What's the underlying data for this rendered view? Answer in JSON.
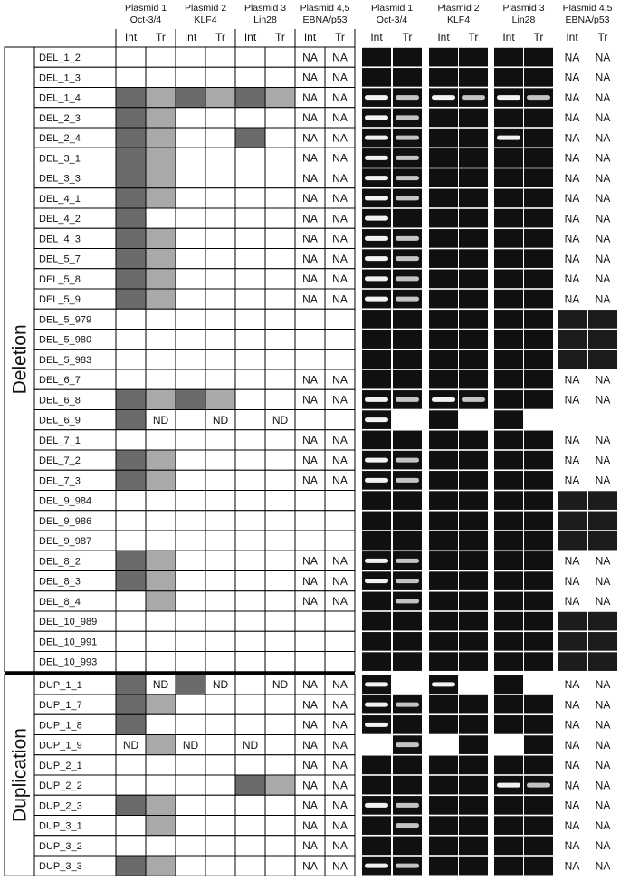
{
  "header": {
    "groups": [
      {
        "line1": "Plasmid 1",
        "line2": "Oct-3/4"
      },
      {
        "line1": "Plasmid 2",
        "line2": "KLF4"
      },
      {
        "line1": "Plasmid 3",
        "line2": "Lin28"
      },
      {
        "line1": "Plasmid 4,5",
        "line2": "EBNA/p53"
      }
    ],
    "sub": [
      "Int",
      "Tr"
    ]
  },
  "sections": [
    {
      "label": "Deletion",
      "rows": [
        {
          "name": "DEL_1_2",
          "shade": [
            null,
            null,
            null,
            null,
            null,
            null,
            null,
            null
          ],
          "text": [
            null,
            null,
            null,
            null,
            null,
            null,
            "NA",
            "NA"
          ]
        },
        {
          "name": "DEL_1_3",
          "shade": [
            null,
            null,
            null,
            null,
            null,
            null,
            null,
            null
          ],
          "text": [
            null,
            null,
            null,
            null,
            null,
            null,
            "NA",
            "NA"
          ]
        },
        {
          "name": "DEL_1_4",
          "shade": [
            "dark",
            "light",
            "dark",
            "light",
            "dark",
            "light",
            null,
            null
          ],
          "text": [
            null,
            null,
            null,
            null,
            null,
            null,
            "NA",
            "NA"
          ]
        },
        {
          "name": "DEL_2_3",
          "shade": [
            "dark",
            "light",
            null,
            null,
            null,
            null,
            null,
            null
          ],
          "text": [
            null,
            null,
            null,
            null,
            null,
            null,
            "NA",
            "NA"
          ]
        },
        {
          "name": "DEL_2_4",
          "shade": [
            "dark",
            "light",
            null,
            null,
            "dark",
            null,
            null,
            null
          ],
          "text": [
            null,
            null,
            null,
            null,
            null,
            null,
            "NA",
            "NA"
          ]
        },
        {
          "name": "DEL_3_1",
          "shade": [
            "dark",
            "light",
            null,
            null,
            null,
            null,
            null,
            null
          ],
          "text": [
            null,
            null,
            null,
            null,
            null,
            null,
            "NA",
            "NA"
          ]
        },
        {
          "name": "DEL_3_3",
          "shade": [
            "dark",
            "light",
            null,
            null,
            null,
            null,
            null,
            null
          ],
          "text": [
            null,
            null,
            null,
            null,
            null,
            null,
            "NA",
            "NA"
          ]
        },
        {
          "name": "DEL_4_1",
          "shade": [
            "dark",
            "light",
            null,
            null,
            null,
            null,
            null,
            null
          ],
          "text": [
            null,
            null,
            null,
            null,
            null,
            null,
            "NA",
            "NA"
          ]
        },
        {
          "name": "DEL_4_2",
          "shade": [
            "dark",
            null,
            null,
            null,
            null,
            null,
            null,
            null
          ],
          "text": [
            null,
            null,
            null,
            null,
            null,
            null,
            "NA",
            "NA"
          ]
        },
        {
          "name": "DEL_4_3",
          "shade": [
            "dark",
            "light",
            null,
            null,
            null,
            null,
            null,
            null
          ],
          "text": [
            null,
            null,
            null,
            null,
            null,
            null,
            "NA",
            "NA"
          ]
        },
        {
          "name": "DEL_5_7",
          "shade": [
            "dark",
            "light",
            null,
            null,
            null,
            null,
            null,
            null
          ],
          "text": [
            null,
            null,
            null,
            null,
            null,
            null,
            "NA",
            "NA"
          ]
        },
        {
          "name": "DEL_5_8",
          "shade": [
            "dark",
            "light",
            null,
            null,
            null,
            null,
            null,
            null
          ],
          "text": [
            null,
            null,
            null,
            null,
            null,
            null,
            "NA",
            "NA"
          ]
        },
        {
          "name": "DEL_5_9",
          "shade": [
            "dark",
            "light",
            null,
            null,
            null,
            null,
            null,
            null
          ],
          "text": [
            null,
            null,
            null,
            null,
            null,
            null,
            "NA",
            "NA"
          ]
        },
        {
          "name": "DEL_5_979",
          "shade": [
            null,
            null,
            null,
            null,
            null,
            null,
            null,
            null
          ],
          "text": [
            null,
            null,
            null,
            null,
            null,
            null,
            null,
            null
          ],
          "ebna_gel": true
        },
        {
          "name": "DEL_5_980",
          "shade": [
            null,
            null,
            null,
            null,
            null,
            null,
            null,
            null
          ],
          "text": [
            null,
            null,
            null,
            null,
            null,
            null,
            null,
            null
          ],
          "ebna_gel": true
        },
        {
          "name": "DEL_5_983",
          "shade": [
            null,
            null,
            null,
            null,
            null,
            null,
            null,
            null
          ],
          "text": [
            null,
            null,
            null,
            null,
            null,
            null,
            null,
            null
          ],
          "ebna_gel": true
        },
        {
          "name": "DEL_6_7",
          "shade": [
            null,
            null,
            null,
            null,
            null,
            null,
            null,
            null
          ],
          "text": [
            null,
            null,
            null,
            null,
            null,
            null,
            "NA",
            "NA"
          ]
        },
        {
          "name": "DEL_6_8",
          "shade": [
            "dark",
            "light",
            "dark",
            "light",
            null,
            null,
            null,
            null
          ],
          "text": [
            null,
            null,
            null,
            null,
            null,
            null,
            "NA",
            "NA"
          ]
        },
        {
          "name": "DEL_6_9",
          "shade": [
            "dark",
            null,
            null,
            null,
            null,
            null,
            null,
            null
          ],
          "text": [
            null,
            "ND",
            null,
            "ND",
            null,
            "ND",
            null,
            null
          ]
        },
        {
          "name": "DEL_7_1",
          "shade": [
            null,
            null,
            null,
            null,
            null,
            null,
            null,
            null
          ],
          "text": [
            null,
            null,
            null,
            null,
            null,
            null,
            "NA",
            "NA"
          ]
        },
        {
          "name": "DEL_7_2",
          "shade": [
            "dark",
            "light",
            null,
            null,
            null,
            null,
            null,
            null
          ],
          "text": [
            null,
            null,
            null,
            null,
            null,
            null,
            "NA",
            "NA"
          ]
        },
        {
          "name": "DEL_7_3",
          "shade": [
            "dark",
            "light",
            null,
            null,
            null,
            null,
            null,
            null
          ],
          "text": [
            null,
            null,
            null,
            null,
            null,
            null,
            "NA",
            "NA"
          ]
        },
        {
          "name": "DEL_9_984",
          "shade": [
            null,
            null,
            null,
            null,
            null,
            null,
            null,
            null
          ],
          "text": [
            null,
            null,
            null,
            null,
            null,
            null,
            null,
            null
          ],
          "ebna_gel": true
        },
        {
          "name": "DEL_9_986",
          "shade": [
            null,
            null,
            null,
            null,
            null,
            null,
            null,
            null
          ],
          "text": [
            null,
            null,
            null,
            null,
            null,
            null,
            null,
            null
          ],
          "ebna_gel": true
        },
        {
          "name": "DEL_9_987",
          "shade": [
            null,
            null,
            null,
            null,
            null,
            null,
            null,
            null
          ],
          "text": [
            null,
            null,
            null,
            null,
            null,
            null,
            null,
            null
          ],
          "ebna_gel": true
        },
        {
          "name": "DEL_8_2",
          "shade": [
            "dark",
            "light",
            null,
            null,
            null,
            null,
            null,
            null
          ],
          "text": [
            null,
            null,
            null,
            null,
            null,
            null,
            "NA",
            "NA"
          ]
        },
        {
          "name": "DEL_8_3",
          "shade": [
            "dark",
            "light",
            null,
            null,
            null,
            null,
            null,
            null
          ],
          "text": [
            null,
            null,
            null,
            null,
            null,
            null,
            "NA",
            "NA"
          ]
        },
        {
          "name": "DEL_8_4",
          "shade": [
            null,
            "light",
            null,
            null,
            null,
            null,
            null,
            null
          ],
          "text": [
            null,
            null,
            null,
            null,
            null,
            null,
            "NA",
            "NA"
          ]
        },
        {
          "name": "DEL_10_989",
          "shade": [
            null,
            null,
            null,
            null,
            null,
            null,
            null,
            null
          ],
          "text": [
            null,
            null,
            null,
            null,
            null,
            null,
            null,
            null
          ],
          "ebna_gel": true
        },
        {
          "name": "DEL_10_991",
          "shade": [
            null,
            null,
            null,
            null,
            null,
            null,
            null,
            null
          ],
          "text": [
            null,
            null,
            null,
            null,
            null,
            null,
            null,
            null
          ],
          "ebna_gel": true
        },
        {
          "name": "DEL_10_993",
          "shade": [
            null,
            null,
            null,
            null,
            null,
            null,
            null,
            null
          ],
          "text": [
            null,
            null,
            null,
            null,
            null,
            null,
            null,
            null
          ],
          "ebna_gel": true
        }
      ]
    },
    {
      "label": "Duplication",
      "rows": [
        {
          "name": "DUP_1_1",
          "shade": [
            "dark",
            null,
            "dark",
            null,
            null,
            null,
            null,
            null
          ],
          "text": [
            null,
            "ND",
            null,
            "ND",
            null,
            "ND",
            "NA",
            "NA"
          ]
        },
        {
          "name": "DUP_1_7",
          "shade": [
            "dark",
            "light",
            null,
            null,
            null,
            null,
            null,
            null
          ],
          "text": [
            null,
            null,
            null,
            null,
            null,
            null,
            "NA",
            "NA"
          ]
        },
        {
          "name": "DUP_1_8",
          "shade": [
            "dark",
            null,
            null,
            null,
            null,
            null,
            null,
            null
          ],
          "text": [
            null,
            null,
            null,
            null,
            null,
            null,
            "NA",
            "NA"
          ]
        },
        {
          "name": "DUP_1_9",
          "shade": [
            null,
            "light",
            null,
            null,
            null,
            null,
            null,
            null
          ],
          "text": [
            "ND",
            null,
            "ND",
            null,
            "ND",
            null,
            "NA",
            "NA"
          ]
        },
        {
          "name": "DUP_2_1",
          "shade": [
            null,
            null,
            null,
            null,
            null,
            null,
            null,
            null
          ],
          "text": [
            null,
            null,
            null,
            null,
            null,
            null,
            "NA",
            "NA"
          ]
        },
        {
          "name": "DUP_2_2",
          "shade": [
            null,
            null,
            null,
            null,
            "dark",
            "light",
            null,
            null
          ],
          "text": [
            null,
            null,
            null,
            null,
            null,
            null,
            "NA",
            "NA"
          ]
        },
        {
          "name": "DUP_2_3",
          "shade": [
            "dark",
            "light",
            null,
            null,
            null,
            null,
            null,
            null
          ],
          "text": [
            null,
            null,
            null,
            null,
            null,
            null,
            "NA",
            "NA"
          ]
        },
        {
          "name": "DUP_3_1",
          "shade": [
            null,
            "light",
            null,
            null,
            null,
            null,
            null,
            null
          ],
          "text": [
            null,
            null,
            null,
            null,
            null,
            null,
            "NA",
            "NA"
          ]
        },
        {
          "name": "DUP_3_2",
          "shade": [
            null,
            null,
            null,
            null,
            null,
            null,
            null,
            null
          ],
          "text": [
            null,
            null,
            null,
            null,
            null,
            null,
            "NA",
            "NA"
          ]
        },
        {
          "name": "DUP_3_3",
          "shade": [
            "dark",
            "light",
            null,
            null,
            null,
            null,
            null,
            null
          ],
          "text": [
            null,
            null,
            null,
            null,
            null,
            null,
            "NA",
            "NA"
          ]
        }
      ]
    }
  ]
}
